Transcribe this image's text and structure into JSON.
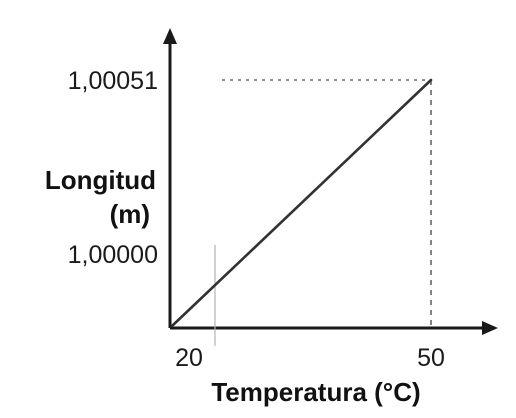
{
  "chart_data": {
    "type": "line",
    "title": "",
    "xlabel": "Temperatura (°C)",
    "ylabel_lines": [
      "Longitud",
      "(m)"
    ],
    "x_ticks": [
      {
        "value": 20,
        "label": "20"
      },
      {
        "value": 50,
        "label": "50"
      }
    ],
    "y_ticks": [
      {
        "value": 1.0,
        "label": "1,00000"
      },
      {
        "value": 1.00051,
        "label": "1,00051"
      }
    ],
    "series": [
      {
        "points": [
          {
            "x": 20,
            "y": 1.0
          },
          {
            "x": 50,
            "y": 1.00051
          }
        ]
      }
    ],
    "guide_lines": "dashed lines from the final point to both axes",
    "grid": false,
    "colors": {
      "axis": "#1a1a1a",
      "line": "#333333",
      "guide": "#666666"
    }
  }
}
